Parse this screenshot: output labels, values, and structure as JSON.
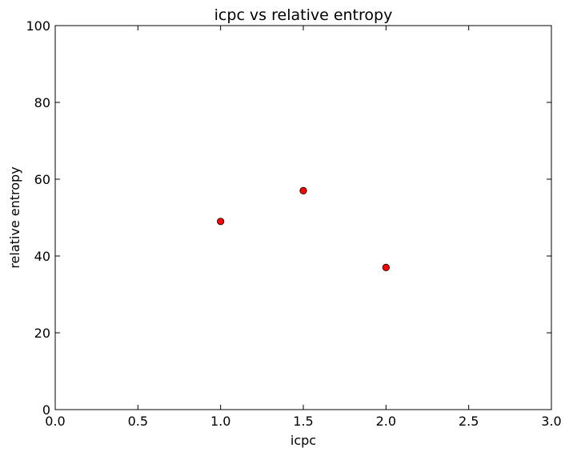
{
  "chart_data": {
    "type": "scatter",
    "title": "icpc vs relative entropy",
    "xlabel": "icpc",
    "ylabel": "relative entropy",
    "xlim": [
      0,
      3.0
    ],
    "ylim": [
      0,
      100
    ],
    "xticks": [
      "0.0",
      "0.5",
      "1.0",
      "1.5",
      "2.0",
      "2.5",
      "3.0"
    ],
    "yticks": [
      "0",
      "20",
      "40",
      "60",
      "80",
      "100"
    ],
    "grid": false,
    "marker_color": "#ff0000",
    "points": [
      {
        "x": 1.0,
        "y": 49
      },
      {
        "x": 1.5,
        "y": 57
      },
      {
        "x": 2.0,
        "y": 37
      }
    ]
  }
}
